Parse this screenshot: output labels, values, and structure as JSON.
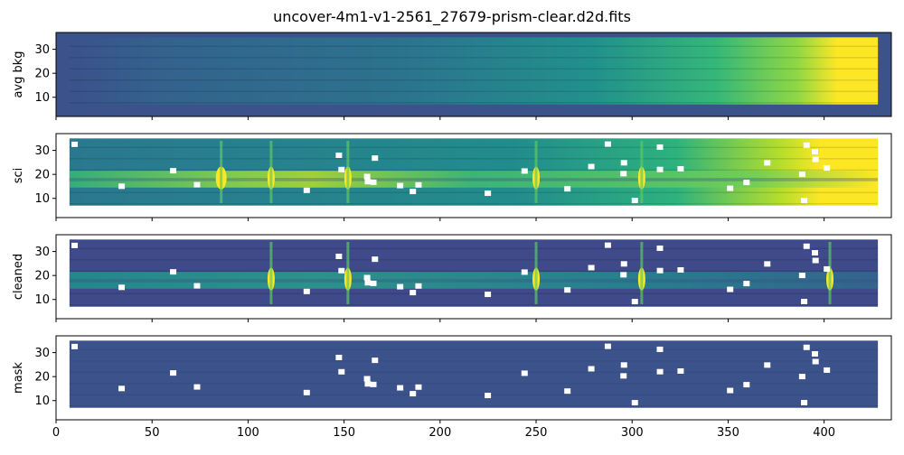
{
  "title": "uncover-4m1-v1-2561_27679-prism-clear.d2d.fits",
  "chart_data": {
    "type": "heatmap",
    "title": "uncover-4m1-v1-2561_27679-prism-clear.d2d.fits",
    "colormap": "viridis",
    "shared_x": true,
    "xlim": [
      0,
      435
    ],
    "x_ticks": [
      0,
      50,
      100,
      150,
      200,
      250,
      300,
      350,
      400
    ],
    "data_extent": {
      "x": [
        7,
        428
      ],
      "y": [
        7,
        35
      ]
    },
    "panels": [
      {
        "ylabel": "avg bkg",
        "ylim": [
          2,
          37
        ],
        "y_ticks": [
          10,
          20,
          30
        ],
        "continuum_trend": "dark on the left, brightening strongly toward x ~ 420",
        "emission_lines_x": [],
        "masked_pixels": 0
      },
      {
        "ylabel": "sci",
        "ylim": [
          2,
          37
        ],
        "y_ticks": [
          10,
          20,
          30
        ],
        "continuum_trend": "trace at y ~ 16-21, background brightening toward red end",
        "emission_lines_x": [
          86,
          112,
          152,
          250,
          305
        ],
        "masked_pixels": "scattered white pixels"
      },
      {
        "ylabel": "cleaned",
        "ylim": [
          2,
          37
        ],
        "y_ticks": [
          10,
          20,
          30
        ],
        "continuum_trend": "background removed, trace at y ~ 16-21",
        "emission_lines_x": [
          112,
          152,
          250,
          305,
          403
        ],
        "masked_pixels": "scattered white pixels"
      },
      {
        "ylabel": "mask",
        "ylim": [
          2,
          37
        ],
        "y_ticks": [
          10,
          20,
          30
        ],
        "continuum_trend": "uniform",
        "emission_lines_x": [],
        "masked_pixels": "scattered white pixels"
      }
    ]
  }
}
